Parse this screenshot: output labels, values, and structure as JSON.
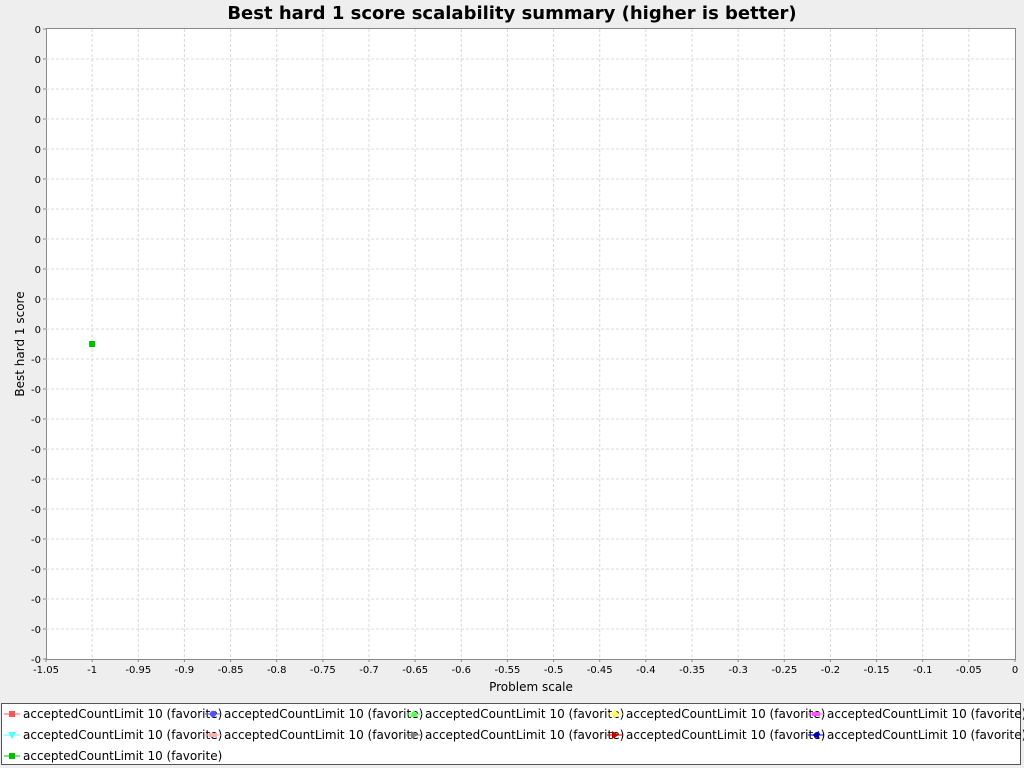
{
  "chart_data": {
    "type": "scatter",
    "title": "Best hard 1 score scalability summary (higher is better)",
    "xlabel": "Problem scale",
    "ylabel": "Best hard 1 score",
    "x_ticks": [
      "-1.05",
      "-1",
      "-0.95",
      "-0.9",
      "-0.85",
      "-0.8",
      "-0.75",
      "-0.7",
      "-0.65",
      "-0.6",
      "-0.55",
      "-0.5",
      "-0.45",
      "-0.4",
      "-0.35",
      "-0.3",
      "-0.25",
      "-0.2",
      "-0.15",
      "-0.1",
      "-0.05",
      "0"
    ],
    "y_ticks": [
      "0",
      "0",
      "0",
      "0",
      "0",
      "0",
      "0",
      "0",
      "0",
      "0",
      "0",
      "-0",
      "-0",
      "-0",
      "-0",
      "-0",
      "-0",
      "-0",
      "-0",
      "-0",
      "-0",
      "-0"
    ],
    "xlim": [
      -1.05,
      0
    ],
    "ylim": [
      -1,
      1
    ],
    "grid": true,
    "legend_position": "bottom",
    "series": [
      {
        "name": "acceptedCountLimit 10 (favorite)",
        "color": "#ff5555",
        "marker": "square",
        "points": []
      },
      {
        "name": "acceptedCountLimit 10 (favorite)",
        "color": "#5555ff",
        "marker": "circle",
        "points": []
      },
      {
        "name": "acceptedCountLimit 10 (favorite)",
        "color": "#55ff55",
        "marker": "triangle-up",
        "points": []
      },
      {
        "name": "acceptedCountLimit 10 (favorite)",
        "color": "#ffff55",
        "marker": "diamond",
        "points": []
      },
      {
        "name": "acceptedCountLimit 10 (favorite)",
        "color": "#ff55ff",
        "marker": "hrect",
        "points": []
      },
      {
        "name": "acceptedCountLimit 10 (favorite)",
        "color": "#55ffff",
        "marker": "triangle-down",
        "points": []
      },
      {
        "name": "acceptedCountLimit 10 (favorite)",
        "color": "#ffafaf",
        "marker": "hrect",
        "points": []
      },
      {
        "name": "acceptedCountLimit 10 (favorite)",
        "color": "#808080",
        "marker": "triangle-right",
        "points": []
      },
      {
        "name": "acceptedCountLimit 10 (favorite)",
        "color": "#c00000",
        "marker": "triangle-right",
        "points": []
      },
      {
        "name": "acceptedCountLimit 10 (favorite)",
        "color": "#0000c0",
        "marker": "triangle-left",
        "points": []
      },
      {
        "name": "acceptedCountLimit 10 (favorite)",
        "color": "#00c000",
        "marker": "square",
        "points": [
          [
            -1,
            0
          ]
        ]
      }
    ]
  }
}
